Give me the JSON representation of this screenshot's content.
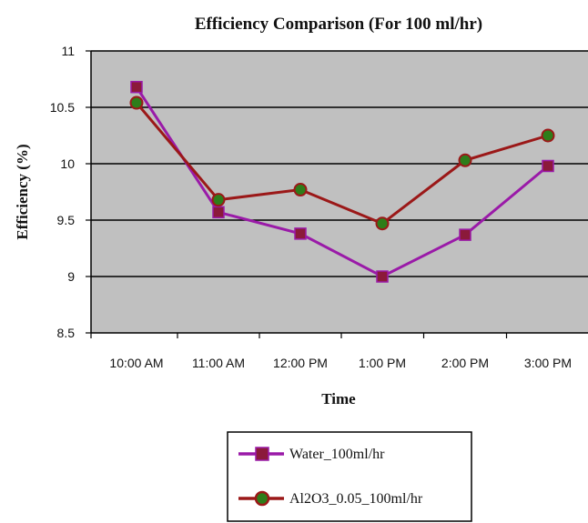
{
  "chart_data": {
    "type": "line",
    "title": "Efficiency Comparison (For 100 ml/hr)",
    "xlabel": "Time",
    "ylabel": "Efficiency (%)",
    "categories": [
      "10:00 AM",
      "11:00 AM",
      "12:00 PM",
      "1:00 PM",
      "2:00 PM",
      "3:00 PM"
    ],
    "ylim": [
      8.5,
      11
    ],
    "yticks": [
      "8.5",
      "9",
      "9.5",
      "10",
      "10.5",
      "11"
    ],
    "grid": true,
    "plot_background": "#c0c0c0",
    "legend_position": "bottom",
    "series": [
      {
        "name": "Water_100ml/hr",
        "values": [
          10.68,
          9.57,
          9.38,
          9.0,
          9.37,
          9.98
        ],
        "color": "#9a1aa8",
        "marker": "square",
        "marker_color": "#8b1a3a"
      },
      {
        "name": "Al2O3_0.05_100ml/hr",
        "values": [
          10.54,
          9.68,
          9.77,
          9.47,
          10.03,
          10.25
        ],
        "color": "#9b1818",
        "marker": "circle",
        "marker_color": "#2e7d1a"
      }
    ]
  }
}
